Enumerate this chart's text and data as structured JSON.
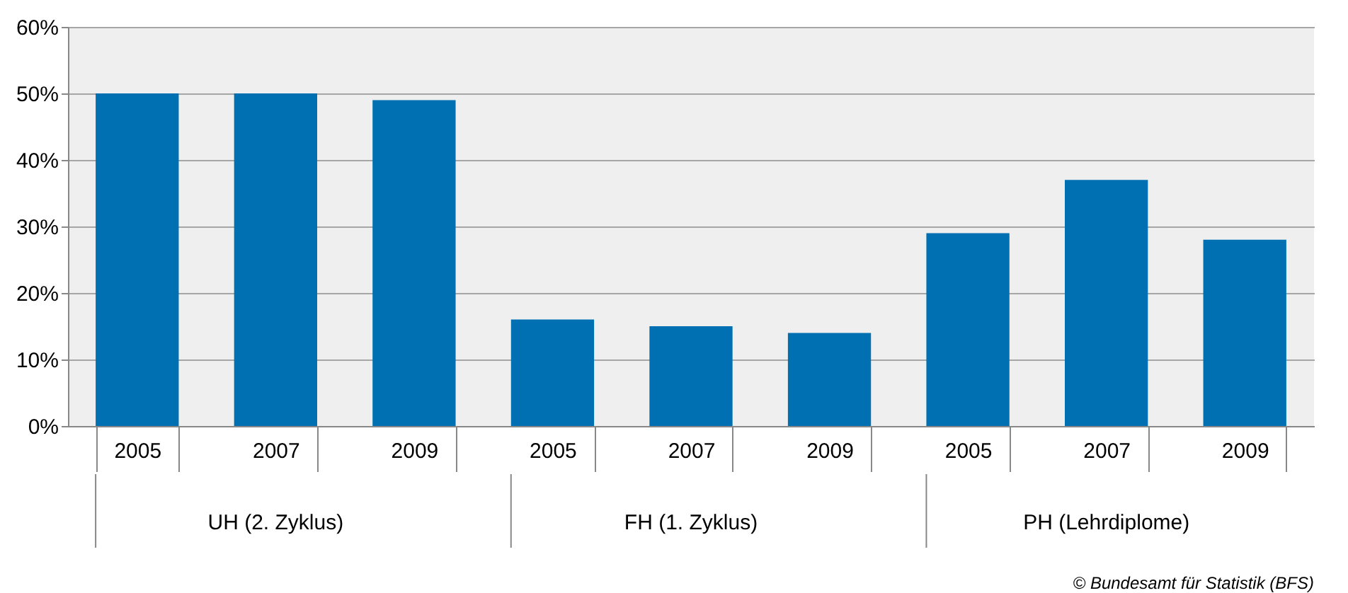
{
  "chart_data": {
    "type": "bar",
    "categories": [
      "2005",
      "2007",
      "2009",
      "2005",
      "2007",
      "2009",
      "2005",
      "2007",
      "2009"
    ],
    "values": [
      50,
      50,
      49,
      16,
      15,
      14,
      29,
      37,
      28
    ],
    "color": "#0070b3",
    "ylim": [
      0,
      60
    ],
    "yticks": [
      {
        "value": 0,
        "label": "0%"
      },
      {
        "value": 10,
        "label": "10%"
      },
      {
        "value": 20,
        "label": "20%"
      },
      {
        "value": 30,
        "label": "30%"
      },
      {
        "value": 40,
        "label": "40%"
      },
      {
        "value": 50,
        "label": "50%"
      },
      {
        "value": 60,
        "label": "60%"
      }
    ],
    "grid": "y",
    "annotations": [
      "UH (2. Zyklus)",
      "FH (1. Zyklus)",
      "PH (Lehrdiplome)",
      "© Bundesamt für Statistik (BFS)"
    ]
  }
}
